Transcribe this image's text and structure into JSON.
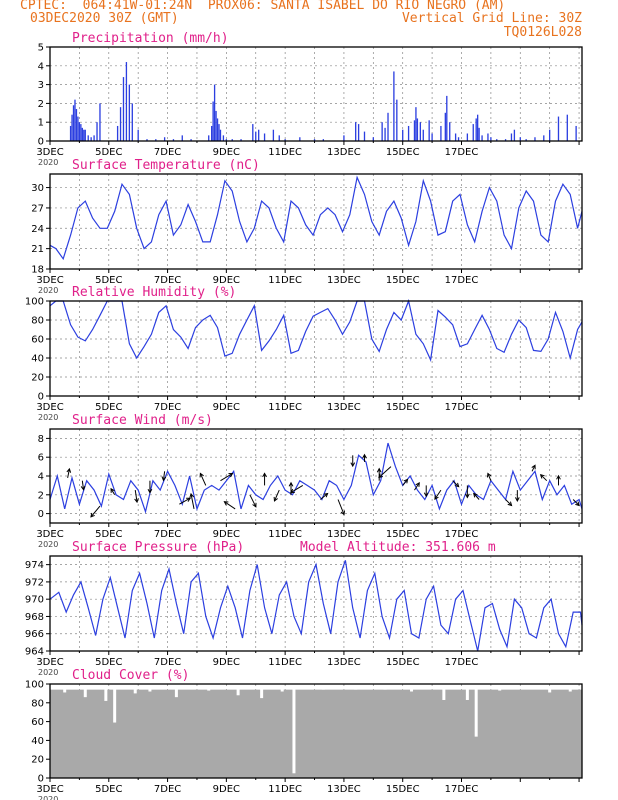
{
  "header": {
    "line1_left": "CPTEC:  064:41W-01:24N  PROX06: SANTA ISABEL DO RIO NEGRO (AM)",
    "line2_left": "03DEC2020 30Z (GMT)",
    "line2_right": "Vertical Grid Line: 30Z",
    "line3_right": "TQ0126L028"
  },
  "colors": {
    "header": "#e8731f",
    "title": "#e0208a",
    "line": "#2c3fe0",
    "bar": "#2c3fe0",
    "cloud": "#a9a9a9",
    "arrow": "#000000"
  },
  "x_ticks": [
    "3DEC",
    "5DEC",
    "7DEC",
    "9DEC",
    "11DEC",
    "13DEC",
    "15DEC",
    "17DEC"
  ],
  "x_tick_year": "2020",
  "chart_data": [
    {
      "type": "bar",
      "title": "Precipitation (mm/h)",
      "ylim": [
        0,
        5
      ],
      "y_ticks": [
        "0",
        "1",
        "2",
        "3",
        "4",
        "5"
      ],
      "x_days": [
        0.7,
        0.75,
        0.8,
        0.85,
        0.9,
        0.95,
        1.0,
        1.05,
        1.1,
        1.15,
        1.2,
        1.3,
        1.4,
        1.5,
        1.6,
        1.7,
        2.3,
        2.4,
        2.5,
        2.6,
        2.7,
        2.8,
        3.0,
        3.3,
        3.6,
        3.9,
        4.2,
        4.5,
        4.8,
        5.0,
        5.4,
        5.5,
        5.55,
        5.6,
        5.65,
        5.7,
        5.75,
        5.8,
        5.9,
        6.0,
        6.2,
        6.5,
        6.9,
        7.0,
        7.1,
        7.3,
        7.6,
        7.8,
        8.0,
        8.5,
        9.0,
        9.3,
        10.0,
        10.4,
        10.5,
        10.7,
        11.0,
        11.3,
        11.4,
        11.5,
        11.7,
        11.8,
        12.0,
        12.2,
        12.4,
        12.45,
        12.5,
        12.6,
        12.7,
        12.9,
        13.0,
        13.3,
        13.45,
        13.5,
        13.6,
        13.8,
        13.9,
        14.2,
        14.4,
        14.5,
        14.55,
        14.6,
        14.7,
        14.9,
        15.0,
        15.2,
        15.5,
        15.7,
        15.8,
        16.0,
        16.2,
        16.5,
        16.8,
        17.0,
        17.3,
        17.6,
        17.9
      ],
      "values": [
        0.8,
        1.4,
        1.9,
        2.2,
        1.7,
        1.3,
        1.0,
        0.9,
        0.7,
        0.6,
        0.6,
        0.3,
        0.2,
        0.3,
        1.0,
        2.0,
        0.8,
        1.8,
        3.4,
        4.2,
        3.0,
        2.0,
        0.6,
        0.1,
        0.1,
        0.2,
        0.1,
        0.3,
        0.1,
        0.0,
        0.3,
        0.8,
        2.1,
        3.0,
        1.6,
        1.2,
        0.9,
        0.6,
        0.3,
        0.1,
        0.1,
        0.1,
        0.9,
        0.5,
        0.6,
        0.4,
        0.6,
        0.3,
        0.1,
        0.2,
        0.1,
        0.1,
        0.3,
        1.0,
        0.9,
        0.5,
        0.2,
        1.0,
        0.7,
        1.5,
        3.7,
        2.2,
        0.6,
        0.8,
        1.1,
        1.8,
        1.2,
        1.0,
        0.6,
        1.1,
        0.4,
        0.8,
        1.5,
        2.4,
        1.0,
        0.4,
        0.2,
        0.4,
        0.9,
        1.2,
        1.4,
        0.7,
        0.3,
        0.4,
        0.2,
        0.1,
        0.1,
        0.4,
        0.6,
        0.2,
        0.1,
        0.2,
        0.3,
        0.6,
        1.3,
        1.4,
        0.8
      ]
    },
    {
      "type": "line",
      "title": "Surface Temperature (nC)",
      "ylim": [
        18,
        32
      ],
      "y_ticks": [
        "18",
        "21",
        "24",
        "27",
        "30"
      ],
      "x": [
        0,
        0.2,
        0.45,
        0.7,
        0.95,
        1.2,
        1.45,
        1.7,
        1.95,
        2.2,
        2.45,
        2.7,
        2.95,
        3.2,
        3.45,
        3.7,
        3.95,
        4.2,
        4.45,
        4.7,
        4.95,
        5.2,
        5.45,
        5.7,
        5.95,
        6.2,
        6.45,
        6.7,
        6.95,
        7.2,
        7.45,
        7.7,
        7.95,
        8.2,
        8.45,
        8.7,
        8.95,
        9.2,
        9.45,
        9.7,
        9.95,
        10.2,
        10.45,
        10.7,
        10.95,
        11.2,
        11.45,
        11.7,
        11.95,
        12.2,
        12.45,
        12.7,
        12.95,
        13.2,
        13.45,
        13.7,
        13.95,
        14.2,
        14.45,
        14.7,
        14.95,
        15.2,
        15.45,
        15.7,
        15.95,
        16.2,
        16.45,
        16.7,
        16.95,
        17.2,
        17.45,
        17.7,
        17.95,
        18.1
      ],
      "values": [
        21.5,
        21,
        19.5,
        23,
        27,
        28,
        25.5,
        24,
        24,
        26.5,
        30.5,
        29,
        24,
        21,
        22,
        26,
        28,
        23,
        24.5,
        27.5,
        25,
        22,
        22,
        26,
        31,
        29.5,
        25,
        22,
        24,
        28,
        27,
        24,
        22,
        28,
        27,
        24.5,
        23,
        26,
        27,
        26,
        23.5,
        26,
        31.5,
        29,
        25,
        23,
        26.5,
        28,
        25.5,
        21.5,
        25,
        31,
        28,
        23,
        23.5,
        28,
        29,
        24.5,
        22,
        26.5,
        30,
        28,
        23,
        21,
        27,
        29.5,
        28,
        23,
        22,
        28,
        30.5,
        29,
        24,
        26.5
      ]
    },
    {
      "type": "line",
      "title": "Relative Humidity (%)",
      "ylim": [
        0,
        100
      ],
      "y_ticks": [
        "0",
        "20",
        "40",
        "60",
        "80",
        "100"
      ],
      "x": [
        0,
        0.2,
        0.45,
        0.7,
        0.95,
        1.2,
        1.45,
        1.7,
        1.95,
        2.2,
        2.45,
        2.7,
        2.95,
        3.2,
        3.45,
        3.7,
        3.95,
        4.2,
        4.45,
        4.7,
        4.95,
        5.2,
        5.45,
        5.7,
        5.95,
        6.2,
        6.45,
        6.7,
        6.95,
        7.2,
        7.45,
        7.7,
        7.95,
        8.2,
        8.45,
        8.7,
        8.95,
        9.2,
        9.45,
        9.7,
        9.95,
        10.2,
        10.45,
        10.7,
        10.95,
        11.2,
        11.45,
        11.7,
        11.95,
        12.2,
        12.45,
        12.7,
        12.95,
        13.2,
        13.45,
        13.7,
        13.95,
        14.2,
        14.45,
        14.7,
        14.95,
        15.2,
        15.45,
        15.7,
        15.95,
        16.2,
        16.45,
        16.7,
        16.95,
        17.2,
        17.45,
        17.7,
        17.95,
        18.1
      ],
      "values": [
        95,
        100,
        100,
        75,
        62,
        58,
        70,
        85,
        100,
        100,
        100,
        55,
        40,
        52,
        65,
        88,
        95,
        70,
        62,
        50,
        72,
        80,
        85,
        72,
        42,
        45,
        65,
        80,
        95,
        48,
        58,
        70,
        85,
        45,
        48,
        68,
        84,
        88,
        92,
        80,
        65,
        78,
        100,
        100,
        60,
        47,
        70,
        88,
        80,
        100,
        65,
        55,
        38,
        90,
        83,
        75,
        52,
        55,
        70,
        85,
        70,
        50,
        46,
        65,
        80,
        72,
        48,
        47,
        60,
        88,
        68,
        40,
        70,
        78
      ]
    },
    {
      "type": "line",
      "title": "Surface Wind (m/s)",
      "ylim": [
        -1,
        9
      ],
      "y_ticks": [
        "0",
        "2",
        "4",
        "6",
        "8"
      ],
      "x": [
        0,
        0.25,
        0.5,
        0.75,
        1.0,
        1.25,
        1.5,
        1.75,
        2.0,
        2.25,
        2.5,
        2.75,
        3.0,
        3.25,
        3.5,
        3.75,
        4.0,
        4.25,
        4.5,
        4.75,
        5.0,
        5.25,
        5.5,
        5.75,
        6.0,
        6.25,
        6.5,
        6.75,
        7.0,
        7.25,
        7.5,
        7.75,
        8.0,
        8.25,
        8.5,
        8.75,
        9.0,
        9.25,
        9.5,
        9.75,
        10.0,
        10.25,
        10.5,
        10.75,
        11.0,
        11.25,
        11.5,
        11.75,
        12.0,
        12.25,
        12.5,
        12.75,
        13.0,
        13.25,
        13.5,
        13.75,
        14.0,
        14.25,
        14.5,
        14.75,
        15.0,
        15.25,
        15.5,
        15.75,
        16.0,
        16.25,
        16.5,
        16.75,
        17.0,
        17.25,
        17.5,
        17.75,
        18.0,
        18.1
      ],
      "values": [
        1.5,
        4.0,
        0.5,
        3.8,
        1.0,
        3.5,
        2.5,
        0.8,
        4.2,
        2.0,
        1.5,
        3.5,
        2.5,
        0.2,
        3.5,
        2.5,
        4.5,
        3.0,
        1.0,
        4.0,
        0.5,
        2.5,
        3.0,
        2.5,
        3.5,
        4.5,
        0.5,
        3.0,
        2.0,
        1.5,
        3.0,
        4.0,
        2.5,
        2.0,
        3.5,
        3.0,
        2.5,
        1.5,
        3.5,
        3.0,
        1.5,
        3.0,
        6.2,
        5.5,
        2.0,
        3.5,
        7.5,
        5.0,
        3.0,
        4.0,
        2.5,
        1.5,
        3.0,
        0.5,
        2.5,
        3.5,
        1.0,
        3.0,
        2.0,
        1.5,
        3.5,
        2.5,
        1.5,
        4.5,
        2.5,
        3.5,
        4.5,
        1.5,
        3.5,
        2.0,
        3.0,
        1.0,
        1.5,
        0.5
      ],
      "arrows": {
        "x": [
          0.6,
          1.1,
          1.7,
          2.2,
          2.9,
          3.4,
          3.9,
          4.4,
          4.9,
          5.3,
          5.8,
          6.3,
          6.8,
          7.3,
          7.8,
          8.2,
          8.6,
          9.2,
          9.8,
          10.3,
          10.7,
          11.2,
          11.6,
          12.0,
          12.4,
          12.8,
          13.3,
          13.7,
          14.2,
          14.6,
          15.0,
          15.5,
          15.9,
          16.4,
          16.9,
          17.3,
          17.8
        ],
        "u": [
          0.3,
          0.2,
          -1.5,
          -0.6,
          0.3,
          0.0,
          -0.2,
          1.8,
          -0.5,
          -0.9,
          2.0,
          -1.8,
          1.0,
          0.0,
          -0.8,
          0.0,
          -2.0,
          1.2,
          1.0,
          0.0,
          0.0,
          0.0,
          -2.0,
          0.8,
          0.8,
          0.0,
          -1.0,
          1.0,
          0.0,
          -0.9,
          -0.5,
          1.0,
          0.0,
          0.5,
          -1.0,
          0.0,
          1.0
        ],
        "v": [
          1.5,
          -1.5,
          -1.8,
          1.0,
          -2.0,
          -2.0,
          -1.5,
          1.0,
          2.5,
          2.0,
          1.2,
          1.2,
          -2.0,
          2.0,
          -1.8,
          2.0,
          -1.2,
          1.0,
          -2.5,
          -1.8,
          1.2,
          2.0,
          -1.8,
          1.0,
          1.2,
          -1.8,
          -1.5,
          -1.0,
          -2.0,
          1.0,
          1.2,
          -1.0,
          -1.8,
          1.0,
          1.0,
          1.6,
          -1.0
        ]
      }
    },
    {
      "type": "line",
      "title": "Surface Pressure (hPa)",
      "subtitle": "Model Altitude: 351.606  m",
      "ylim": [
        964,
        975
      ],
      "y_ticks": [
        "964",
        "966",
        "968",
        "970",
        "972",
        "974"
      ],
      "x": [
        0,
        0.3,
        0.55,
        0.8,
        1.05,
        1.3,
        1.55,
        1.8,
        2.05,
        2.3,
        2.55,
        2.8,
        3.05,
        3.3,
        3.55,
        3.8,
        4.05,
        4.3,
        4.55,
        4.8,
        5.05,
        5.3,
        5.55,
        5.8,
        6.05,
        6.3,
        6.55,
        6.8,
        7.05,
        7.3,
        7.55,
        7.8,
        8.05,
        8.3,
        8.55,
        8.8,
        9.05,
        9.3,
        9.55,
        9.8,
        10.05,
        10.3,
        10.55,
        10.8,
        11.05,
        11.3,
        11.55,
        11.8,
        12.05,
        12.3,
        12.55,
        12.8,
        13.05,
        13.3,
        13.55,
        13.8,
        14.05,
        14.3,
        14.55,
        14.8,
        15.05,
        15.3,
        15.55,
        15.8,
        16.05,
        16.3,
        16.55,
        16.8,
        17.05,
        17.3,
        17.55,
        17.8,
        18.05,
        18.1
      ],
      "values": [
        970,
        970.8,
        968.5,
        970.5,
        972,
        969,
        965.8,
        970,
        972.5,
        969,
        965.5,
        971,
        973,
        969.5,
        965.5,
        971,
        973.5,
        969.5,
        966,
        972,
        973,
        968,
        965.5,
        969,
        971.5,
        969,
        965.5,
        971,
        974,
        969,
        966,
        970.5,
        972,
        968,
        966,
        972,
        974,
        969.5,
        966,
        972,
        974.5,
        969,
        965.5,
        971,
        973,
        968,
        965.5,
        970,
        971,
        966,
        965.5,
        970,
        971.5,
        967,
        966,
        970,
        971,
        967.5,
        964,
        969,
        969.5,
        966.5,
        964.5,
        970,
        969,
        966,
        965.5,
        969,
        970,
        966,
        964.5,
        968.5,
        968.5,
        967
      ]
    },
    {
      "type": "bar",
      "title": "Cloud Cover (%)",
      "ylim": [
        0,
        100
      ],
      "y_ticks": [
        "0",
        "20",
        "40",
        "60",
        "80",
        "100"
      ],
      "x_days": [
        0.5,
        1.2,
        1.9,
        2.2,
        2.9,
        3.4,
        4.3,
        5.4,
        6.4,
        7.2,
        7.9,
        8.3,
        9.3,
        10.4,
        11.4,
        12.3,
        12.8,
        13.4,
        14.2,
        14.5,
        15.3,
        16.3,
        17.0,
        17.7
      ],
      "values": [
        91,
        86,
        82,
        59,
        90,
        92,
        86,
        93,
        88,
        85,
        92,
        5,
        94,
        94,
        94,
        92,
        95,
        83,
        83,
        44,
        93,
        96,
        91,
        92
      ],
      "baseline": 94
    }
  ]
}
